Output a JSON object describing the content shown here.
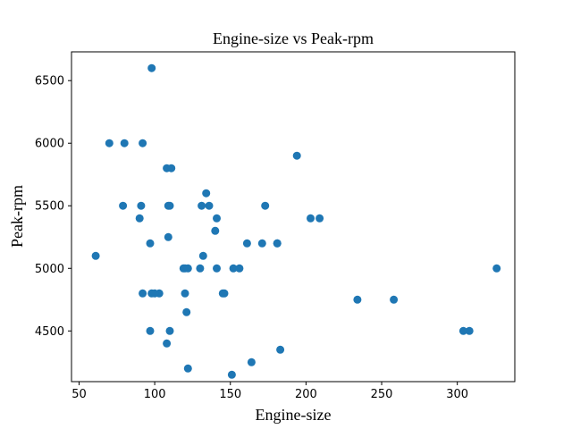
{
  "chart_data": {
    "type": "scatter",
    "title": "Engine-size vs Peak-rpm",
    "xlabel": "Engine-size",
    "ylabel": "Peak-rpm",
    "xlim": [
      45,
      338
    ],
    "ylim": [
      4095,
      6730
    ],
    "x_ticks": [
      50,
      100,
      150,
      200,
      250,
      300
    ],
    "y_ticks": [
      4500,
      5000,
      5500,
      6000,
      6500
    ],
    "grid": false,
    "marker_color": "#1f77b4",
    "series": [
      {
        "x": [
          130,
          152,
          109,
          136,
          131,
          108,
          164,
          209,
          61,
          90,
          98,
          122,
          156,
          92,
          79,
          110,
          111,
          119,
          258,
          326,
          91,
          70,
          80,
          140,
          134,
          183,
          234,
          308,
          304,
          97,
          103,
          120,
          181,
          151,
          194,
          203,
          132,
          121,
          146,
          171,
          161,
          141,
          173,
          145,
          92,
          97,
          98,
          100,
          108,
          109,
          110,
          120,
          122,
          141,
          181
        ],
        "y": [
          5000,
          5000,
          5500,
          5500,
          5500,
          5800,
          4250,
          5400,
          5100,
          5400,
          6600,
          4200,
          5000,
          6000,
          5500,
          4500,
          5800,
          5000,
          4750,
          5000,
          5500,
          6000,
          6000,
          5300,
          5600,
          4350,
          4750,
          4500,
          4500,
          5200,
          4800,
          5000,
          5200,
          4150,
          5900,
          5400,
          5100,
          4650,
          4800,
          5200,
          5200,
          5400,
          5500,
          4800,
          4800,
          4500,
          4800,
          4800,
          4400,
          5250,
          5500,
          4800,
          5000,
          5000,
          5200
        ]
      }
    ]
  }
}
